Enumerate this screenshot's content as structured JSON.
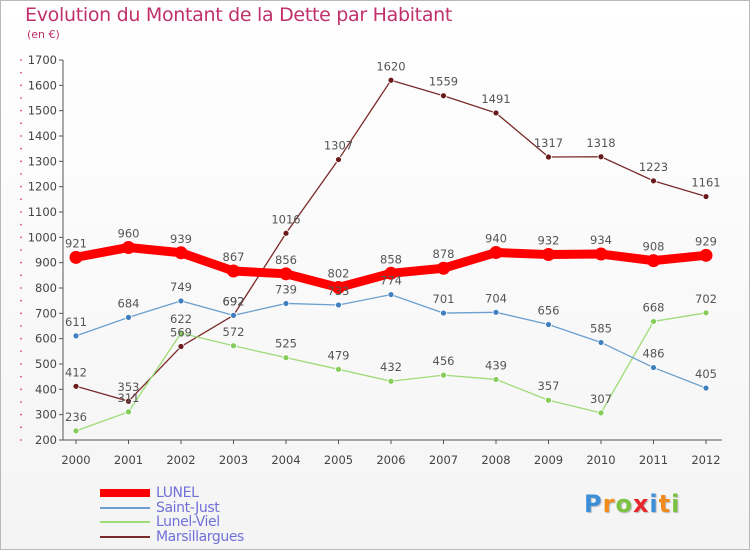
{
  "header": {
    "title": "Evolution du Montant de la Dette par Habitant",
    "unit": "(en €)"
  },
  "colors": {
    "title": "#c0306a",
    "axis": "#555555",
    "grid": "#e2e2e2"
  },
  "chart_data": {
    "type": "line",
    "title": "Evolution du Montant de la Dette par Habitant",
    "subtitle": "(en €)",
    "xlabel": "",
    "ylabel": "",
    "x": [
      "2000",
      "2001",
      "2002",
      "2003",
      "2004",
      "2005",
      "2006",
      "2007",
      "2008",
      "2009",
      "2010",
      "2011",
      "2012"
    ],
    "ylim": [
      200,
      1700
    ],
    "yticks": [
      200,
      300,
      400,
      500,
      600,
      700,
      800,
      900,
      1000,
      1100,
      1200,
      1300,
      1400,
      1500,
      1600,
      1700
    ],
    "grid": false,
    "legend": "bottom-left",
    "series": [
      {
        "name": "LUNEL",
        "color": "#ff0000",
        "marker": "#ff0000",
        "label_color": "#555555",
        "width": 9,
        "r": 6.5,
        "values": [
          921,
          960,
          939,
          867,
          856,
          802,
          858,
          878,
          940,
          932,
          934,
          908,
          929
        ],
        "labels": [
          "921",
          "960",
          "939",
          "867",
          "856",
          "802",
          "858",
          "878",
          "940",
          "932",
          "934",
          "908",
          "929"
        ]
      },
      {
        "name": "Saint-Just",
        "color": "#6a9fcf",
        "marker": "#3f7fbf",
        "label_color": "#555555",
        "width": 1.3,
        "r": 3,
        "values": [
          611,
          684,
          749,
          692,
          739,
          733,
          774,
          701,
          704,
          656,
          585,
          486,
          405
        ],
        "labels": [
          "611",
          "684",
          "749",
          "692",
          "739",
          "733",
          "774",
          "701",
          "704",
          "656",
          "585",
          "486",
          "405"
        ]
      },
      {
        "name": "Lunel-Viel",
        "color": "#9edc78",
        "marker": "#86cc5a",
        "label_color": "#555555",
        "width": 1.3,
        "r": 3,
        "values": [
          236,
          311,
          622,
          572,
          525,
          479,
          432,
          456,
          439,
          357,
          307,
          668,
          702
        ],
        "labels": [
          "236",
          "311",
          "622",
          "572",
          "525",
          "479",
          "432",
          "456",
          "439",
          "357",
          "307",
          "668",
          "702"
        ]
      },
      {
        "name": "Marsillargues",
        "color": "#7a2a2a",
        "marker": "#6a1a1a",
        "label_color": "#555555",
        "width": 1.3,
        "r": 3,
        "values": [
          412,
          353,
          569,
          692,
          1016,
          1307,
          1620,
          1559,
          1491,
          1317,
          1318,
          1223,
          1161
        ],
        "labels": [
          "412",
          "353",
          "569",
          "692",
          "1016",
          "1307",
          "1620",
          "1559",
          "1491",
          "1317",
          "1318",
          "1223",
          "1161"
        ]
      }
    ]
  },
  "legend": {
    "items": [
      {
        "label": "LUNEL",
        "color": "#ff0000",
        "text_color": "#7070d8"
      },
      {
        "label": "Saint-Just",
        "color": "#6a9fcf",
        "text_color": "#7070d8"
      },
      {
        "label": "Lunel-Viel",
        "color": "#9edc78",
        "text_color": "#7070d8"
      },
      {
        "label": "Marsillargues",
        "color": "#7a2a2a",
        "text_color": "#7070d8"
      }
    ]
  },
  "logo": {
    "text": "Proxiti",
    "letters": [
      {
        "ch": "P",
        "color": "#3c8fd8"
      },
      {
        "ch": "r",
        "color": "#f08c1e"
      },
      {
        "ch": "o",
        "color": "#7cc242"
      },
      {
        "ch": "x",
        "color": "#e8262b"
      },
      {
        "ch": "i",
        "color": "#3c8fd8"
      },
      {
        "ch": "t",
        "color": "#f08c1e"
      },
      {
        "ch": "i",
        "color": "#7cc242"
      }
    ]
  }
}
